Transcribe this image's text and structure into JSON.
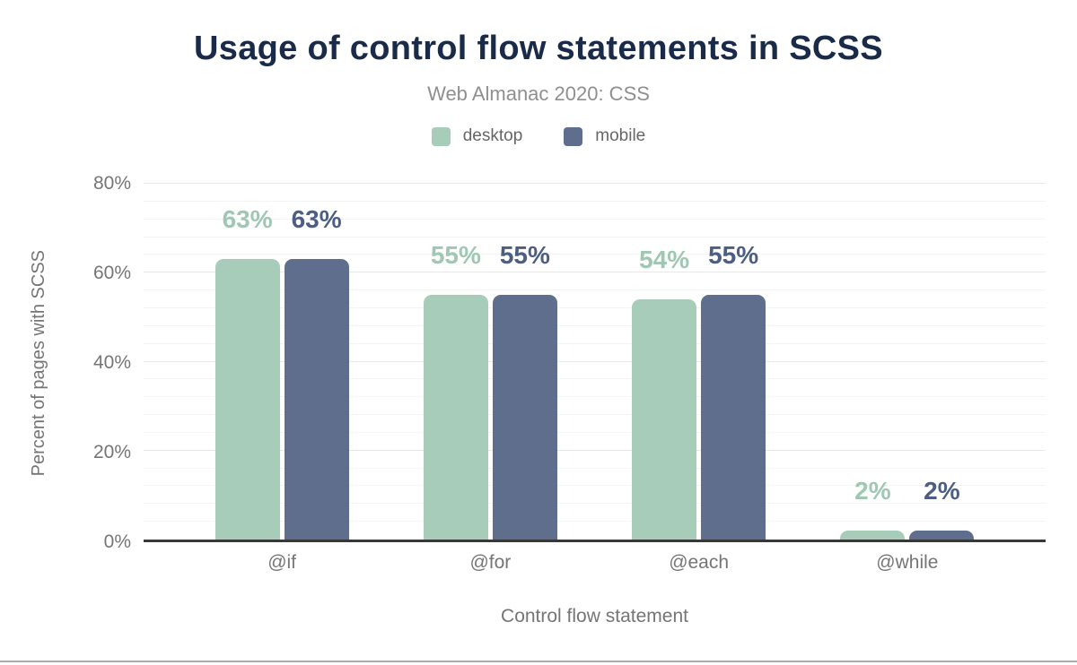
{
  "chart_data": {
    "type": "bar",
    "title": "Usage of control flow statements in SCSS",
    "subtitle": "Web Almanac 2020: CSS",
    "categories": [
      "@if",
      "@for",
      "@each",
      "@while"
    ],
    "series": [
      {
        "name": "desktop",
        "color": "#a8ccba",
        "label_color": "#9fc7b2",
        "values": [
          63,
          55,
          54,
          2
        ]
      },
      {
        "name": "mobile",
        "color": "#5f6e8c",
        "label_color": "#4c5e84",
        "values": [
          63,
          55,
          55,
          2
        ]
      }
    ],
    "xlabel": "Control flow statement",
    "ylabel": "Percent of pages with SCSS",
    "ylim": [
      0,
      80
    ],
    "yticks_major": [
      0,
      20,
      40,
      60,
      80
    ],
    "ytick_labels": [
      "0%",
      "20%",
      "40%",
      "60%",
      "80%"
    ],
    "minor_grid_step": 4,
    "grid": true,
    "legend_position": "top",
    "value_suffix": "%",
    "colors": {
      "title": "#1a2b49",
      "subtitle": "#8f8f8f",
      "axis_text": "#757575",
      "legend_text": "#666666",
      "axis_line": "#383838",
      "grid_major": "#e7e7e7",
      "grid_minor": "#f4f4f4"
    }
  }
}
